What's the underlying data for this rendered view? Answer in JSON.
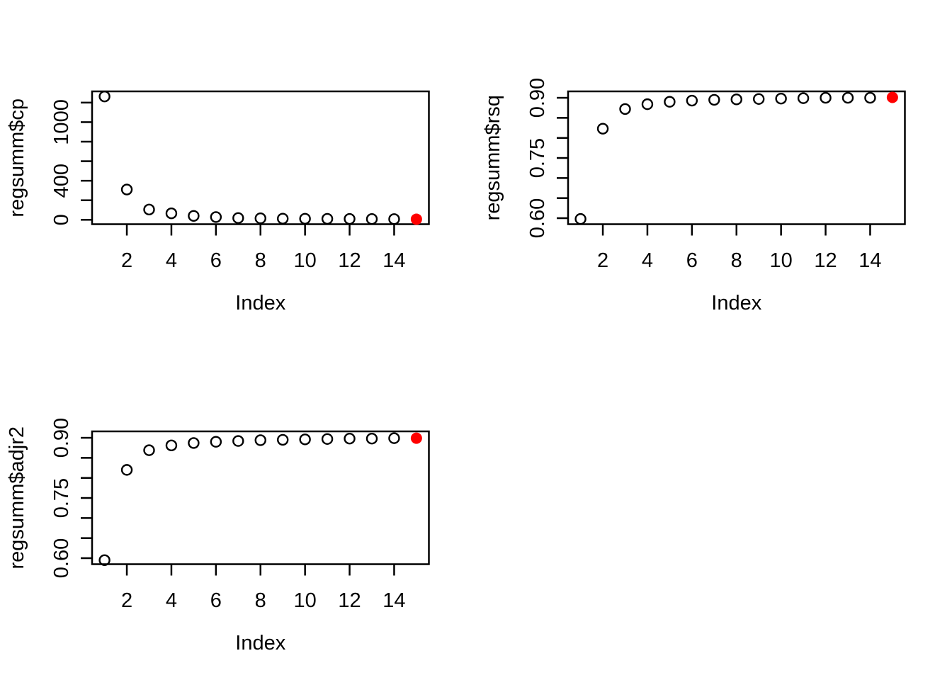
{
  "figure": {
    "background": "#ffffff",
    "axis_color": "#000000",
    "point_color": "#000000",
    "highlight_color": "#ff0000",
    "layout": "2x2 grid, bottom-right cell empty"
  },
  "chart_data": [
    {
      "type": "scatter",
      "panel": "top-left",
      "title": "",
      "xlabel": "Index",
      "ylabel": "regsumm$cp",
      "x": [
        1,
        2,
        3,
        4,
        5,
        6,
        7,
        8,
        9,
        10,
        11,
        12,
        13,
        14,
        15
      ],
      "y": [
        1263,
        310,
        105,
        66,
        40,
        28,
        18,
        15,
        12,
        11,
        10,
        9,
        8,
        7,
        6
      ],
      "highlight_x": 15,
      "xlim": [
        0.44,
        15.56
      ],
      "ylim": [
        -45,
        1315
      ],
      "xticks": [
        {
          "v": 2,
          "label": "2"
        },
        {
          "v": 4,
          "label": "4"
        },
        {
          "v": 6,
          "label": "6"
        },
        {
          "v": 8,
          "label": "8"
        },
        {
          "v": 10,
          "label": "10"
        },
        {
          "v": 12,
          "label": "12"
        },
        {
          "v": 14,
          "label": "14"
        }
      ],
      "yticks": [
        {
          "v": 0,
          "label": "0"
        },
        {
          "v": 200,
          "label": ""
        },
        {
          "v": 400,
          "label": "400"
        },
        {
          "v": 600,
          "label": ""
        },
        {
          "v": 800,
          "label": ""
        },
        {
          "v": 1000,
          "label": "1000"
        },
        {
          "v": 1200,
          "label": ""
        }
      ],
      "grid": false,
      "legend": null
    },
    {
      "type": "scatter",
      "panel": "top-right",
      "title": "",
      "xlabel": "Index",
      "ylabel": "regsumm$rsq",
      "x": [
        1,
        2,
        3,
        4,
        5,
        6,
        7,
        8,
        9,
        10,
        11,
        12,
        13,
        14,
        15
      ],
      "y": [
        0.598,
        0.823,
        0.872,
        0.884,
        0.89,
        0.893,
        0.895,
        0.896,
        0.897,
        0.898,
        0.899,
        0.9,
        0.9,
        0.9,
        0.901
      ],
      "highlight_x": 15,
      "xlim": [
        0.44,
        15.56
      ],
      "ylim": [
        0.585,
        0.916
      ],
      "xticks": [
        {
          "v": 2,
          "label": "2"
        },
        {
          "v": 4,
          "label": "4"
        },
        {
          "v": 6,
          "label": "6"
        },
        {
          "v": 8,
          "label": "8"
        },
        {
          "v": 10,
          "label": "10"
        },
        {
          "v": 12,
          "label": "12"
        },
        {
          "v": 14,
          "label": "14"
        }
      ],
      "yticks": [
        {
          "v": 0.6,
          "label": "0.60"
        },
        {
          "v": 0.65,
          "label": ""
        },
        {
          "v": 0.7,
          "label": ""
        },
        {
          "v": 0.75,
          "label": "0.75"
        },
        {
          "v": 0.8,
          "label": ""
        },
        {
          "v": 0.85,
          "label": ""
        },
        {
          "v": 0.9,
          "label": "0.90"
        }
      ],
      "grid": false,
      "legend": null
    },
    {
      "type": "scatter",
      "panel": "bottom-left",
      "title": "",
      "xlabel": "Index",
      "ylabel": "regsumm$adjr2",
      "x": [
        1,
        2,
        3,
        4,
        5,
        6,
        7,
        8,
        9,
        10,
        11,
        12,
        13,
        14,
        15
      ],
      "y": [
        0.595,
        0.82,
        0.869,
        0.881,
        0.887,
        0.89,
        0.892,
        0.894,
        0.895,
        0.896,
        0.897,
        0.898,
        0.898,
        0.899,
        0.899
      ],
      "highlight_x": 15,
      "xlim": [
        0.44,
        15.56
      ],
      "ylim": [
        0.585,
        0.916
      ],
      "xticks": [
        {
          "v": 2,
          "label": "2"
        },
        {
          "v": 4,
          "label": "4"
        },
        {
          "v": 6,
          "label": "6"
        },
        {
          "v": 8,
          "label": "8"
        },
        {
          "v": 10,
          "label": "10"
        },
        {
          "v": 12,
          "label": "12"
        },
        {
          "v": 14,
          "label": "14"
        }
      ],
      "yticks": [
        {
          "v": 0.6,
          "label": "0.60"
        },
        {
          "v": 0.65,
          "label": ""
        },
        {
          "v": 0.7,
          "label": ""
        },
        {
          "v": 0.75,
          "label": "0.75"
        },
        {
          "v": 0.8,
          "label": ""
        },
        {
          "v": 0.85,
          "label": ""
        },
        {
          "v": 0.9,
          "label": "0.90"
        }
      ],
      "grid": false,
      "legend": null
    }
  ]
}
